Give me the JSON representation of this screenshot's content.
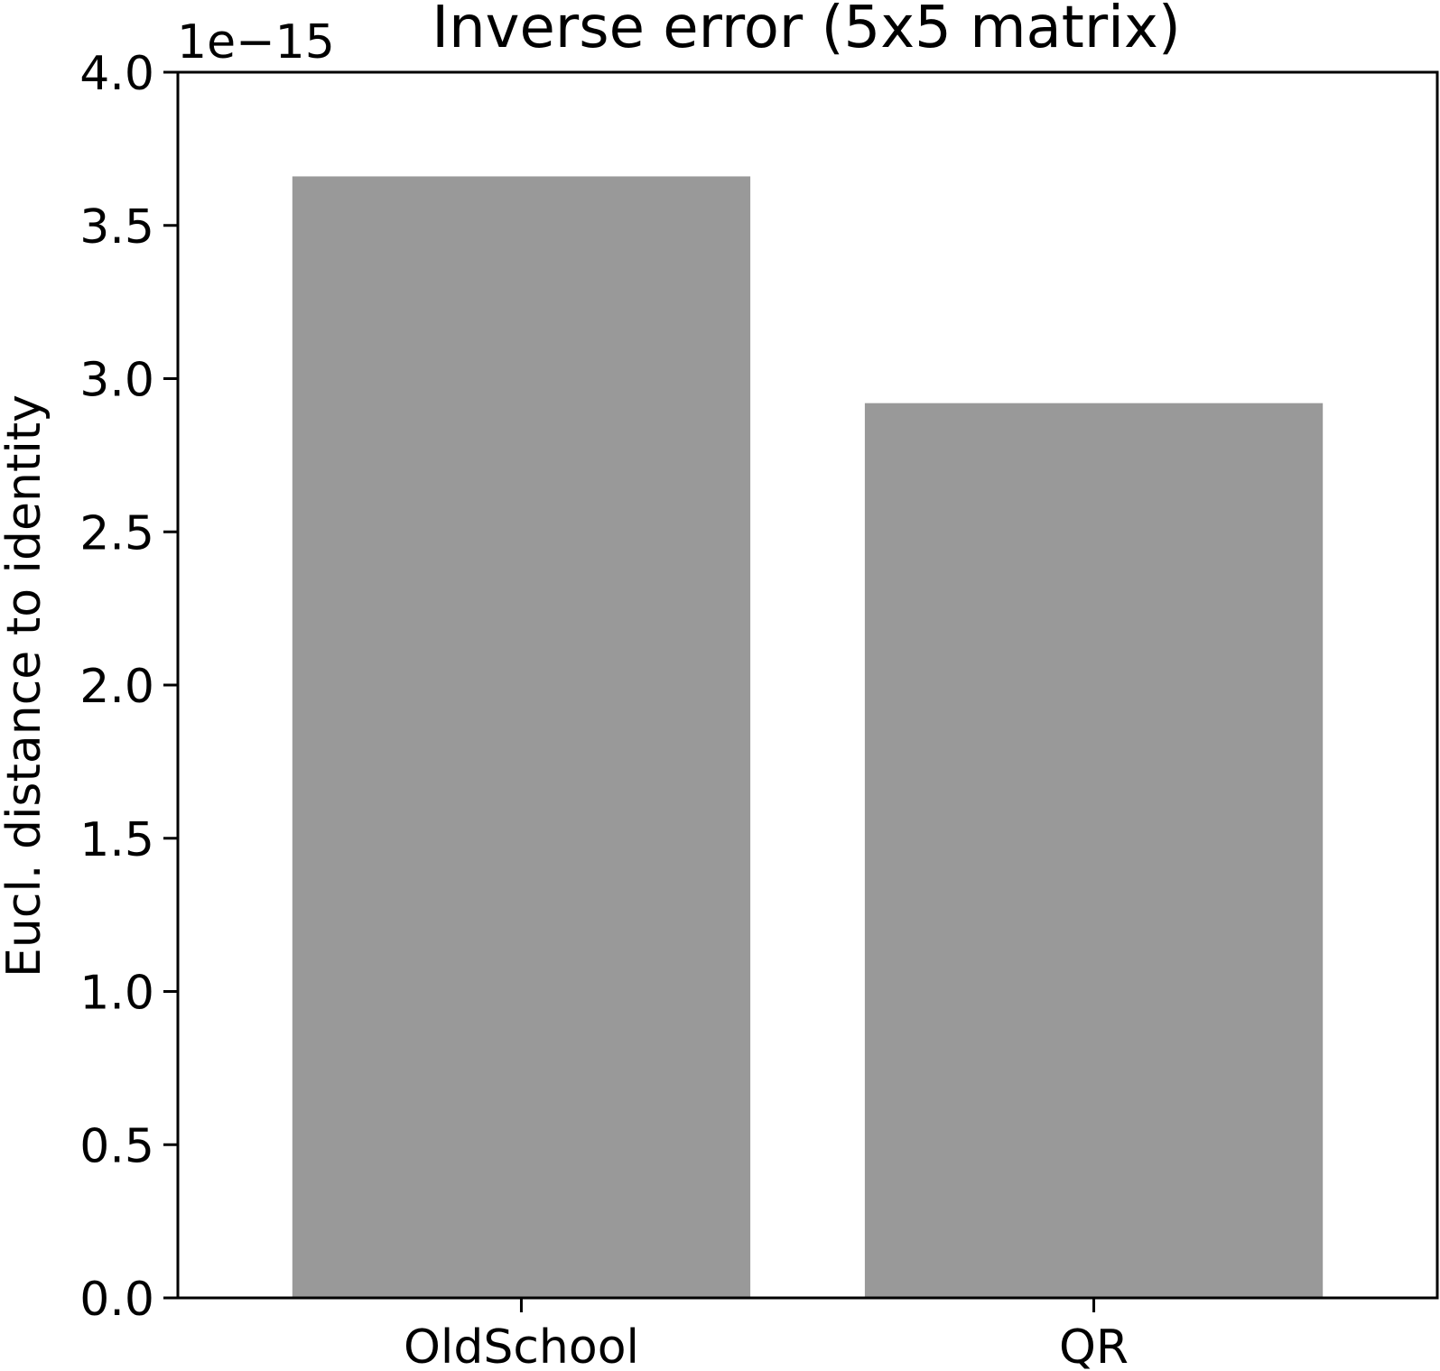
{
  "chart_data": {
    "type": "bar",
    "title": "Inverse error (5x5 matrix)",
    "xlabel": "",
    "ylabel": "Eucl. distance to identity",
    "y_offset_text": "1e−15",
    "y_scale_multiplier": 1e-15,
    "categories": [
      "OldSchool",
      "QR"
    ],
    "values": [
      3.66e-15,
      2.92e-15
    ],
    "ylim": [
      0,
      4e-15
    ],
    "yticks": [
      0.0,
      0.5,
      1.0,
      1.5,
      2.0,
      2.5,
      3.0,
      3.5,
      4.0
    ],
    "ytick_labels": [
      "0.0",
      "0.5",
      "1.0",
      "1.5",
      "2.0",
      "2.5",
      "3.0",
      "3.5",
      "4.0"
    ],
    "bar_color": "#999999",
    "grid": false,
    "legend": "none"
  }
}
